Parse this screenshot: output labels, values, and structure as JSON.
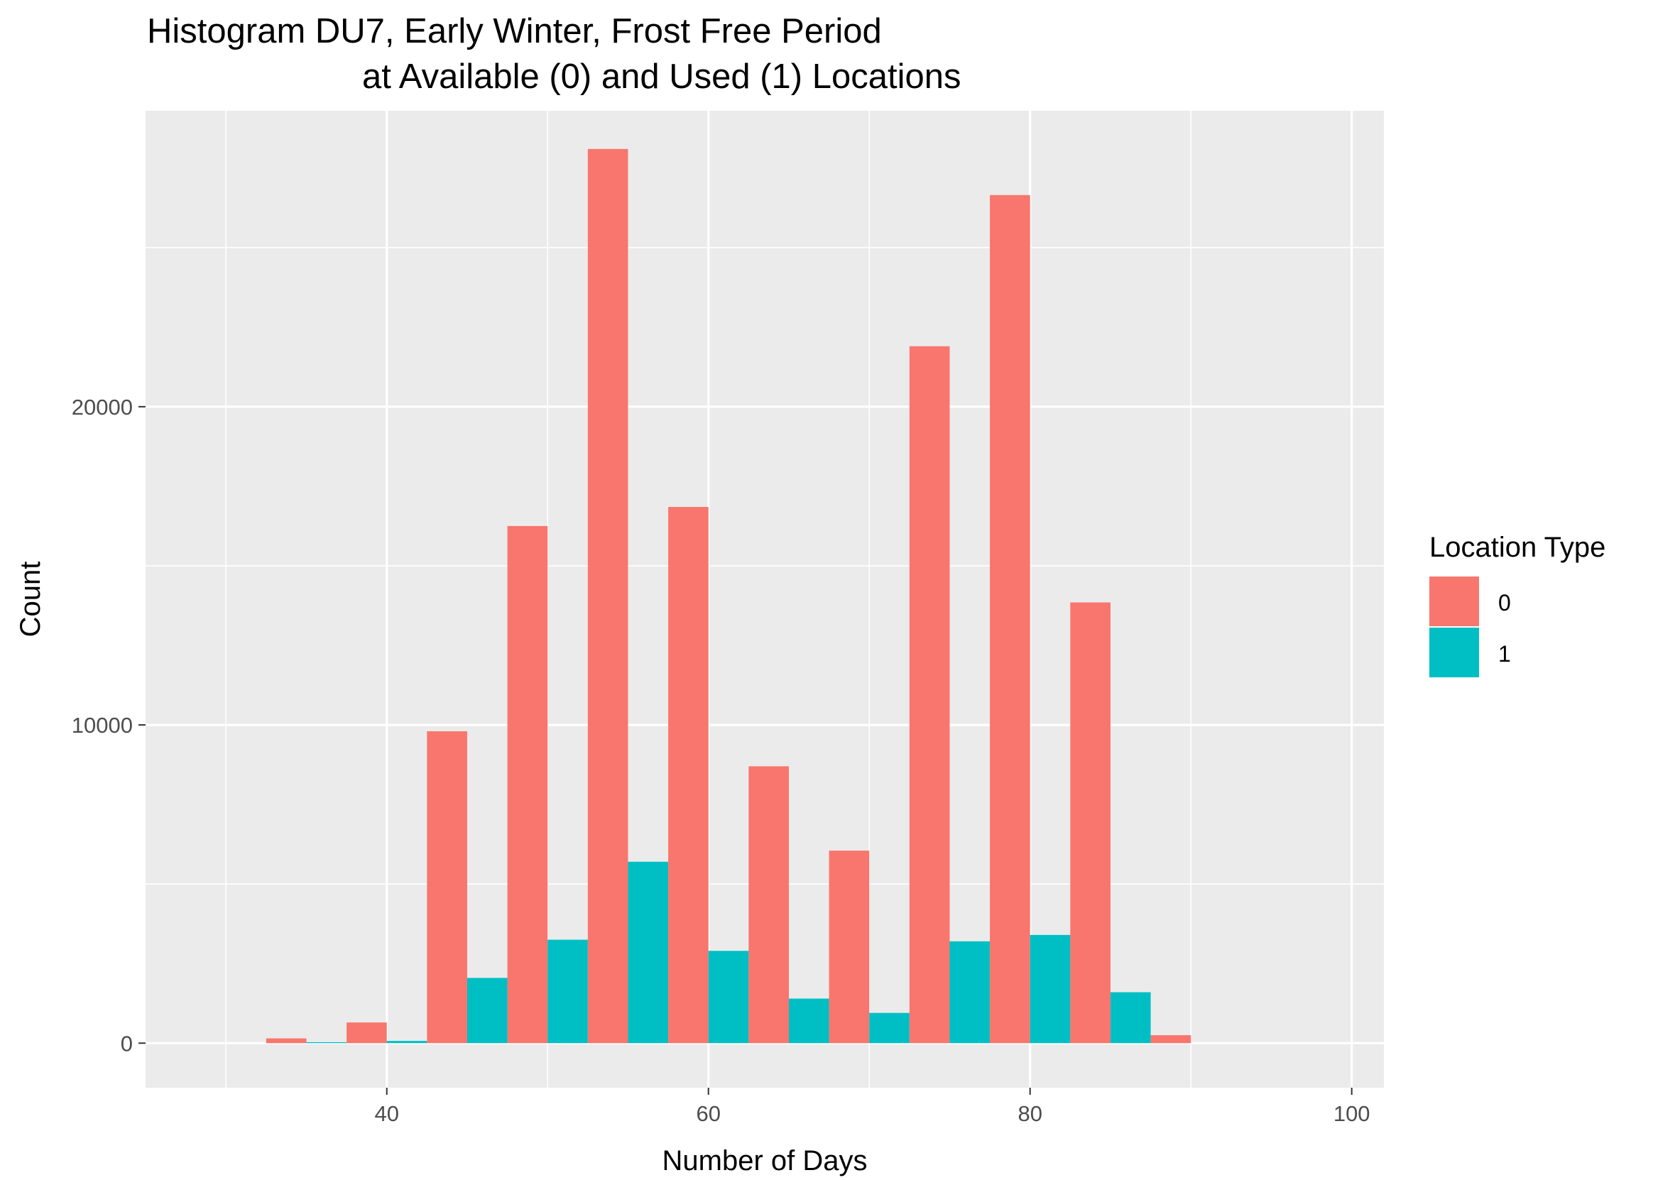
{
  "chart_data": {
    "type": "bar",
    "title": "Histogram DU7, Early Winter, Frost Free Period\n               at Available (0) and Used (1) Locations",
    "title_lines": [
      "Histogram DU7, Early Winter, Frost Free Period",
      "at Available (0) and Used (1) Locations"
    ],
    "xlabel": "Number of Days",
    "ylabel": "Count",
    "xlim": [
      25,
      102
    ],
    "ylim": [
      -1400,
      29300
    ],
    "x_ticks": [
      40,
      60,
      80,
      100
    ],
    "x_tick_labels": [
      "40",
      "60",
      "80",
      "100"
    ],
    "x_minor_ticks": [
      30,
      50,
      70,
      90
    ],
    "y_ticks": [
      0,
      10000,
      20000
    ],
    "y_tick_labels": [
      "0",
      "10000",
      "20000"
    ],
    "y_minor_ticks": [
      5000,
      15000,
      25000
    ],
    "grid": true,
    "legend": {
      "title": "Location Type",
      "position": "right",
      "entries": [
        "0",
        "1"
      ]
    },
    "bin_centers": [
      35,
      40,
      45,
      50,
      55,
      60,
      65,
      70,
      75,
      80,
      85,
      90
    ],
    "bin_width": 5,
    "series": [
      {
        "name": "0",
        "color": "#F8766D",
        "values": [
          150,
          650,
          9800,
          16250,
          28100,
          16850,
          8700,
          6050,
          21900,
          26650,
          13850,
          250
        ]
      },
      {
        "name": "1",
        "color": "#00BFC4",
        "values": [
          30,
          70,
          2050,
          3250,
          5700,
          2900,
          1400,
          950,
          3200,
          3400,
          1600,
          0
        ]
      }
    ]
  }
}
